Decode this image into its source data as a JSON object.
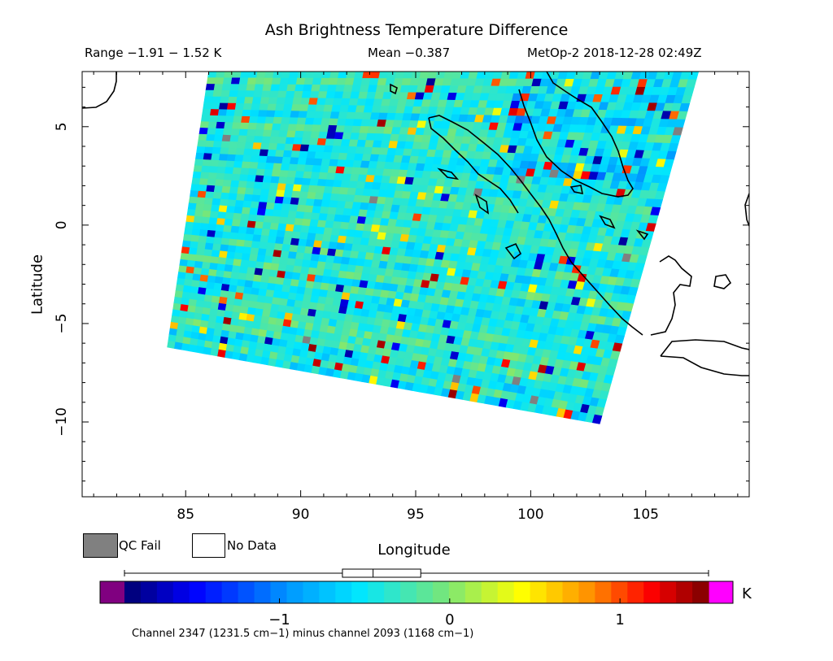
{
  "title": "Ash Brightness Temperature Difference",
  "range_label": "Range −1.91 − 1.52 K",
  "mean_label": "Mean −0.387",
  "satellite_label": "MetOp-2 2018-12-28 02:49Z",
  "legend": {
    "qc_fail": "QC Fail",
    "no_data": "No Data"
  },
  "colorbar": {
    "units": "K",
    "min": -1.91,
    "max": 1.52,
    "ticks": [
      {
        "value": -1,
        "label": "−1"
      },
      {
        "value": 0,
        "label": "0"
      },
      {
        "value": 1,
        "label": "1"
      }
    ],
    "under_color": "#800080",
    "over_color": "#ff00ff",
    "boxplot": {
      "whisker_low": -1.91,
      "q1": -0.63,
      "median": -0.45,
      "q3": -0.17,
      "whisker_high": 1.52
    }
  },
  "footer_note": "Channel 2347 (1231.5 cm−1) minus channel 2093 (1168 cm−1)",
  "chart_data": {
    "type": "heatmap",
    "title": "Ash Brightness Temperature Difference",
    "xlabel": "Longitude",
    "ylabel": "Latitude",
    "xlim": [
      80.5,
      109.5
    ],
    "ylim": [
      -13.8,
      7.8
    ],
    "xticks": [
      {
        "value": 85,
        "label": "85"
      },
      {
        "value": 90,
        "label": "90"
      },
      {
        "value": 95,
        "label": "95"
      },
      {
        "value": 100,
        "label": "100"
      },
      {
        "value": 105,
        "label": "105"
      }
    ],
    "yticks": [
      {
        "value": 5,
        "label": "5"
      },
      {
        "value": 0,
        "label": "0"
      },
      {
        "value": -5,
        "label": "−5"
      },
      {
        "value": -10,
        "label": "−10"
      }
    ],
    "swath_corners": [
      {
        "lon": 86.0,
        "lat": 7.8
      },
      {
        "lon": 107.3,
        "lat": 7.8
      },
      {
        "lon": 103.0,
        "lat": -10.1
      },
      {
        "lon": 84.2,
        "lat": -6.2
      }
    ],
    "mean": -0.387,
    "value_range": [
      -1.91,
      1.52
    ],
    "units": "K",
    "grid": false
  }
}
